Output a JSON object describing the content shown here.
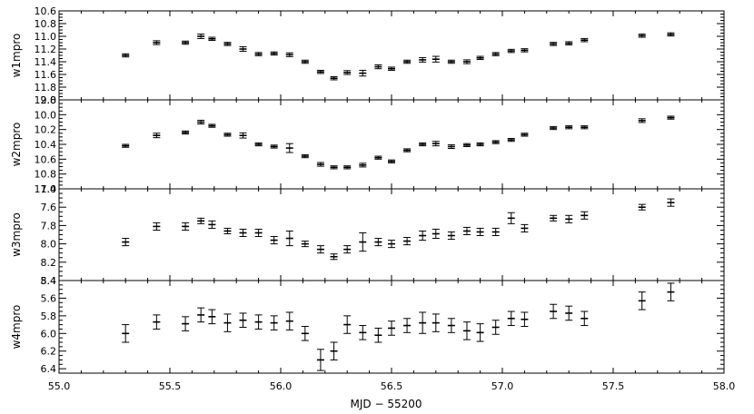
{
  "chart_data": {
    "type": "scatter",
    "xlabel": "MJD − 55200",
    "xlim": [
      55.0,
      58.0
    ],
    "x_ticks": [
      "55.0",
      "55.5",
      "56.0",
      "56.5",
      "57.0",
      "57.5",
      "58.0"
    ],
    "x": [
      55.3,
      55.44,
      55.57,
      55.64,
      55.69,
      55.76,
      55.83,
      55.9,
      55.97,
      56.04,
      56.11,
      56.18,
      56.24,
      56.3,
      56.37,
      56.44,
      56.5,
      56.57,
      56.64,
      56.7,
      56.77,
      56.84,
      56.9,
      56.97,
      57.04,
      57.1,
      57.23,
      57.3,
      57.37,
      57.63,
      57.76
    ],
    "panels": [
      {
        "name": "w1mpro",
        "ylabel": "w1mpro",
        "ylim": [
          10.6,
          12.0
        ],
        "inverted": true,
        "y_ticks": [
          "10.6",
          "10.8",
          "11.0",
          "11.2",
          "11.4",
          "11.6",
          "11.8",
          "12.0"
        ],
        "values": [
          11.3,
          11.1,
          11.1,
          11.0,
          11.04,
          11.12,
          11.2,
          11.28,
          11.27,
          11.29,
          11.4,
          11.56,
          11.66,
          11.57,
          11.58,
          11.48,
          11.51,
          11.4,
          11.37,
          11.36,
          11.4,
          11.4,
          11.34,
          11.28,
          11.23,
          11.22,
          11.12,
          11.11,
          11.06,
          10.99,
          10.97
        ],
        "errors": [
          0.025,
          0.03,
          0.025,
          0.035,
          0.025,
          0.025,
          0.035,
          0.025,
          0.025,
          0.03,
          0.025,
          0.025,
          0.025,
          0.03,
          0.045,
          0.03,
          0.025,
          0.025,
          0.035,
          0.045,
          0.025,
          0.03,
          0.025,
          0.025,
          0.025,
          0.025,
          0.025,
          0.025,
          0.025,
          0.025,
          0.025
        ]
      },
      {
        "name": "w2mpro",
        "ylabel": "w2mpro",
        "ylim": [
          9.8,
          11.0
        ],
        "inverted": true,
        "y_ticks": [
          "9.8",
          "10.0",
          "10.2",
          "10.4",
          "10.6",
          "10.8",
          "11.0"
        ],
        "values": [
          10.42,
          10.28,
          10.24,
          10.1,
          10.15,
          10.27,
          10.28,
          10.4,
          10.43,
          10.45,
          10.56,
          10.67,
          10.71,
          10.71,
          10.68,
          10.58,
          10.63,
          10.48,
          10.4,
          10.39,
          10.43,
          10.41,
          10.4,
          10.37,
          10.34,
          10.27,
          10.18,
          10.17,
          10.17,
          10.08,
          10.04
        ],
        "errors": [
          0.02,
          0.03,
          0.02,
          0.025,
          0.02,
          0.02,
          0.035,
          0.02,
          0.02,
          0.06,
          0.02,
          0.025,
          0.02,
          0.02,
          0.025,
          0.02,
          0.02,
          0.02,
          0.02,
          0.03,
          0.025,
          0.02,
          0.02,
          0.02,
          0.02,
          0.02,
          0.02,
          0.02,
          0.02,
          0.025,
          0.02
        ]
      },
      {
        "name": "w3mpro",
        "ylabel": "w3mpro",
        "ylim": [
          7.4,
          8.4
        ],
        "inverted": true,
        "y_ticks": [
          "7.4",
          "7.6",
          "7.8",
          "8.0",
          "8.2",
          "8.4"
        ],
        "values": [
          7.98,
          7.81,
          7.81,
          7.75,
          7.79,
          7.86,
          7.88,
          7.88,
          7.96,
          7.94,
          8.0,
          8.06,
          8.14,
          8.06,
          7.98,
          7.98,
          8.0,
          7.97,
          7.91,
          7.89,
          7.91,
          7.86,
          7.87,
          7.87,
          7.72,
          7.83,
          7.72,
          7.73,
          7.69,
          7.6,
          7.55
        ],
        "errors": [
          0.04,
          0.04,
          0.04,
          0.03,
          0.04,
          0.03,
          0.04,
          0.04,
          0.04,
          0.08,
          0.03,
          0.04,
          0.03,
          0.04,
          0.1,
          0.04,
          0.04,
          0.04,
          0.05,
          0.05,
          0.04,
          0.04,
          0.04,
          0.04,
          0.06,
          0.04,
          0.03,
          0.04,
          0.04,
          0.03,
          0.04
        ]
      },
      {
        "name": "w4mpro",
        "ylabel": "w4mpro",
        "ylim": [
          5.4,
          6.45
        ],
        "inverted": true,
        "y_ticks": [
          "5.4",
          "5.6",
          "5.8",
          "6.0",
          "6.2",
          "6.4"
        ],
        "values": [
          6.0,
          5.87,
          5.89,
          5.79,
          5.81,
          5.88,
          5.85,
          5.87,
          5.88,
          5.86,
          6.0,
          6.3,
          6.2,
          5.9,
          5.99,
          6.02,
          5.94,
          5.91,
          5.88,
          5.88,
          5.91,
          5.97,
          5.99,
          5.93,
          5.83,
          5.84,
          5.75,
          5.77,
          5.83,
          5.63,
          5.53
        ],
        "errors": [
          0.1,
          0.08,
          0.08,
          0.08,
          0.08,
          0.1,
          0.08,
          0.08,
          0.08,
          0.1,
          0.08,
          0.12,
          0.1,
          0.1,
          0.08,
          0.08,
          0.08,
          0.08,
          0.12,
          0.1,
          0.08,
          0.1,
          0.1,
          0.08,
          0.08,
          0.08,
          0.08,
          0.08,
          0.08,
          0.1,
          0.1
        ]
      }
    ]
  }
}
